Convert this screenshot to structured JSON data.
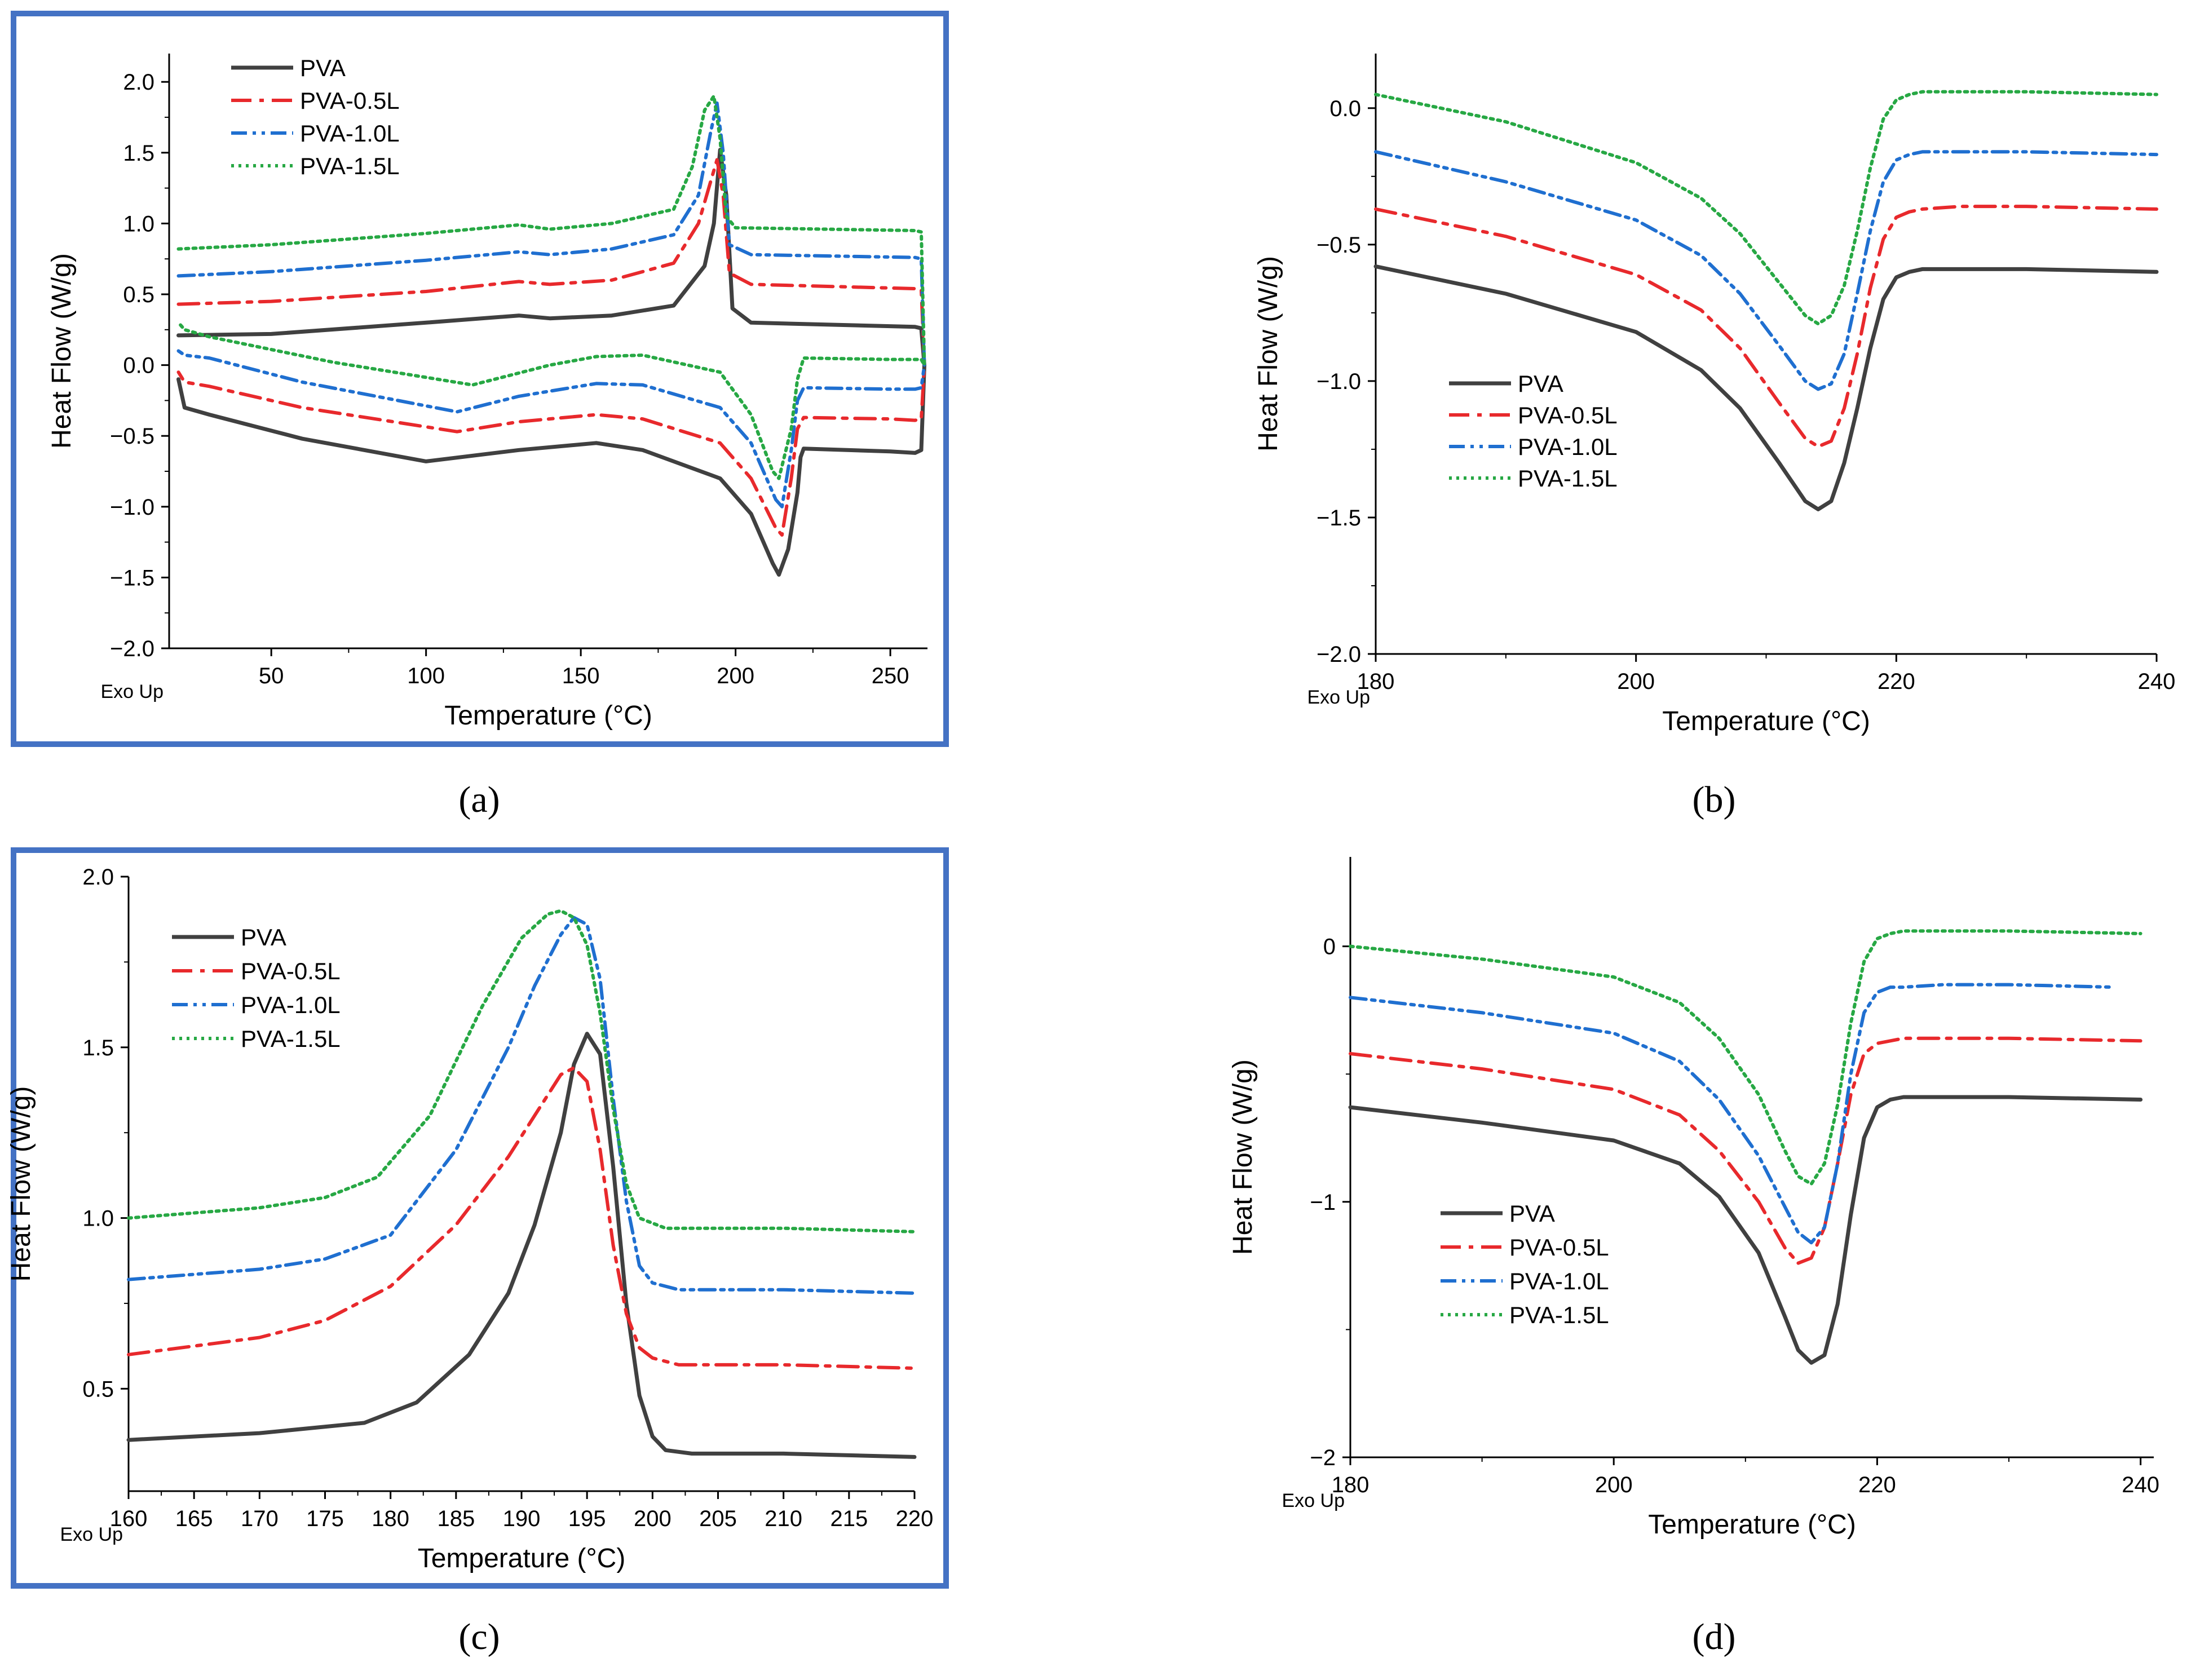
{
  "chart_data": [
    {
      "type": "line",
      "panel_label": "(a)",
      "xlabel": "Temperature (°C)",
      "ylabel": "Heat Flow (W/g)",
      "corner_note": "Exo Up",
      "xlim": [
        17,
        262
      ],
      "ylim": [
        -2.0,
        2.2
      ],
      "xticks": [
        50,
        100,
        150,
        200,
        250
      ],
      "xtick_labels": [
        "50",
        "100",
        "150",
        "200",
        "250"
      ],
      "yticks": [
        -2.0,
        -1.5,
        -1.0,
        -0.5,
        0.0,
        0.5,
        1.0,
        1.5,
        2.0
      ],
      "ytick_labels": [
        "−2.0",
        "−1.5",
        "−1.0",
        "−0.5",
        "0.0",
        "0.5",
        "1.0",
        "1.5",
        "2.0"
      ],
      "legend_position": "top-left",
      "series": [
        {
          "name": "PVA",
          "color": "#404040",
          "dash": "solid",
          "x": [
            20,
            50,
            100,
            130,
            140,
            160,
            180,
            190,
            193,
            195,
            197,
            199,
            205,
            258,
            260,
            261,
            260,
            258,
            250,
            222,
            221,
            220,
            217,
            214,
            212,
            205,
            195,
            170,
            155,
            130,
            100,
            60,
            30,
            22,
            20
          ],
          "y": [
            0.21,
            0.22,
            0.3,
            0.35,
            0.33,
            0.35,
            0.42,
            0.7,
            1.0,
            1.52,
            1.2,
            0.4,
            0.3,
            0.27,
            0.26,
            0.0,
            -0.6,
            -0.62,
            -0.61,
            -0.59,
            -0.65,
            -0.9,
            -1.3,
            -1.48,
            -1.4,
            -1.05,
            -0.8,
            -0.6,
            -0.55,
            -0.6,
            -0.68,
            -0.52,
            -0.35,
            -0.3,
            -0.1
          ]
        },
        {
          "name": "PVA-0.5L",
          "color": "#e8292c",
          "dash": "dashdot",
          "x": [
            20,
            50,
            100,
            130,
            140,
            160,
            180,
            188,
            192,
            194,
            196,
            198,
            205,
            258,
            260,
            261,
            260,
            258,
            250,
            222,
            220,
            218,
            215,
            213,
            205,
            195,
            170,
            155,
            130,
            110,
            60,
            30,
            22,
            20
          ],
          "y": [
            0.43,
            0.45,
            0.52,
            0.59,
            0.57,
            0.6,
            0.72,
            1.0,
            1.3,
            1.45,
            1.2,
            0.65,
            0.57,
            0.54,
            0.53,
            0.0,
            -0.38,
            -0.39,
            -0.38,
            -0.37,
            -0.45,
            -0.8,
            -1.2,
            -1.15,
            -0.8,
            -0.55,
            -0.38,
            -0.35,
            -0.4,
            -0.47,
            -0.3,
            -0.15,
            -0.12,
            -0.05
          ]
        },
        {
          "name": "PVA-1.0L",
          "color": "#1f6fd0",
          "dash": "dashdotdot",
          "x": [
            20,
            50,
            100,
            130,
            140,
            160,
            180,
            188,
            192,
            194,
            196,
            198,
            205,
            258,
            260,
            261,
            260,
            258,
            250,
            222,
            220,
            218,
            215,
            213,
            205,
            195,
            170,
            155,
            130,
            110,
            60,
            30,
            22,
            20
          ],
          "y": [
            0.63,
            0.66,
            0.74,
            0.8,
            0.78,
            0.82,
            0.92,
            1.2,
            1.65,
            1.85,
            1.5,
            0.85,
            0.78,
            0.76,
            0.75,
            0.0,
            -0.16,
            -0.17,
            -0.17,
            -0.16,
            -0.25,
            -0.6,
            -1.0,
            -0.95,
            -0.55,
            -0.3,
            -0.14,
            -0.13,
            -0.22,
            -0.33,
            -0.12,
            0.05,
            0.07,
            0.1
          ]
        },
        {
          "name": "PVA-1.5L",
          "color": "#27a844",
          "dash": "dotted",
          "x": [
            20,
            50,
            100,
            130,
            140,
            160,
            180,
            186,
            190,
            193,
            195,
            197,
            200,
            258,
            260,
            261,
            260,
            258,
            250,
            222,
            220,
            218,
            214,
            212,
            205,
            195,
            170,
            155,
            140,
            115,
            70,
            30,
            22,
            20
          ],
          "y": [
            0.82,
            0.85,
            0.93,
            0.99,
            0.96,
            1.0,
            1.1,
            1.4,
            1.8,
            1.9,
            1.6,
            1.05,
            0.97,
            0.95,
            0.94,
            0.0,
            0.04,
            0.04,
            0.04,
            0.05,
            -0.1,
            -0.45,
            -0.8,
            -0.75,
            -0.35,
            -0.05,
            0.07,
            0.06,
            0.0,
            -0.14,
            0.02,
            0.2,
            0.25,
            0.3
          ]
        }
      ]
    },
    {
      "type": "line",
      "panel_label": "(b)",
      "xlabel": "Temperature (°C)",
      "ylabel": "Heat Flow (W/g)",
      "corner_note": "Exo Up",
      "xlim": [
        180,
        240
      ],
      "ylim": [
        -2.0,
        0.2
      ],
      "xticks": [
        180,
        200,
        220,
        240
      ],
      "xtick_labels": [
        "180",
        "200",
        "220",
        "240"
      ],
      "yticks": [
        -2.0,
        -1.5,
        -1.0,
        -0.5,
        0.0
      ],
      "ytick_labels": [
        "−2.0",
        "−1.5",
        "−1.0",
        "−0.5",
        "0.0"
      ],
      "legend_position": "lower-left",
      "series": [
        {
          "name": "PVA",
          "color": "#404040",
          "dash": "solid",
          "x": [
            180,
            190,
            200,
            205,
            208,
            211,
            213,
            214,
            215,
            216,
            217,
            218,
            219,
            220,
            221,
            222,
            225,
            230,
            240
          ],
          "y": [
            -0.58,
            -0.68,
            -0.82,
            -0.96,
            -1.1,
            -1.3,
            -1.44,
            -1.47,
            -1.44,
            -1.3,
            -1.1,
            -0.88,
            -0.7,
            -0.62,
            -0.6,
            -0.59,
            -0.59,
            -0.59,
            -0.6
          ]
        },
        {
          "name": "PVA-0.5L",
          "color": "#e8292c",
          "dash": "dashdot",
          "x": [
            180,
            190,
            200,
            205,
            208,
            211,
            213,
            214,
            215,
            216,
            217,
            218,
            219,
            220,
            221,
            222,
            225,
            230,
            240
          ],
          "y": [
            -0.37,
            -0.47,
            -0.61,
            -0.74,
            -0.88,
            -1.08,
            -1.21,
            -1.24,
            -1.22,
            -1.1,
            -0.9,
            -0.66,
            -0.48,
            -0.4,
            -0.38,
            -0.37,
            -0.36,
            -0.36,
            -0.37
          ]
        },
        {
          "name": "PVA-1.0L",
          "color": "#1f6fd0",
          "dash": "dashdotdot",
          "x": [
            180,
            190,
            200,
            205,
            208,
            211,
            213,
            214,
            215,
            216,
            217,
            218,
            219,
            220,
            221,
            222,
            225,
            230,
            240
          ],
          "y": [
            -0.16,
            -0.27,
            -0.41,
            -0.54,
            -0.68,
            -0.87,
            -1.0,
            -1.03,
            -1.01,
            -0.9,
            -0.68,
            -0.45,
            -0.27,
            -0.19,
            -0.17,
            -0.16,
            -0.16,
            -0.16,
            -0.17
          ]
        },
        {
          "name": "PVA-1.5L",
          "color": "#27a844",
          "dash": "dotted",
          "x": [
            180,
            190,
            200,
            205,
            208,
            211,
            213,
            214,
            215,
            216,
            217,
            218,
            219,
            220,
            221,
            222,
            225,
            230,
            240
          ],
          "y": [
            0.05,
            -0.05,
            -0.2,
            -0.33,
            -0.46,
            -0.64,
            -0.76,
            -0.79,
            -0.76,
            -0.65,
            -0.45,
            -0.22,
            -0.04,
            0.03,
            0.05,
            0.06,
            0.06,
            0.06,
            0.05
          ]
        }
      ]
    },
    {
      "type": "line",
      "panel_label": "(c)",
      "xlabel": "Temperature (°C)",
      "ylabel": "Heat Flow (W/g)",
      "corner_note": "Exo Up",
      "xlim": [
        160,
        220
      ],
      "ylim": [
        0.2,
        2.0
      ],
      "xticks": [
        160,
        165,
        170,
        175,
        180,
        185,
        190,
        195,
        200,
        205,
        210,
        215,
        220
      ],
      "xtick_labels": [
        "160",
        "165",
        "170",
        "175",
        "180",
        "185",
        "190",
        "195",
        "200",
        "205",
        "210",
        "215",
        "220"
      ],
      "yticks": [
        0.5,
        1.0,
        1.5,
        2.0
      ],
      "ytick_labels": [
        "0.5",
        "1.0",
        "1.5",
        "2.0"
      ],
      "legend_position": "top-left",
      "series": [
        {
          "name": "PVA",
          "color": "#404040",
          "dash": "solid",
          "x": [
            160,
            170,
            178,
            182,
            186,
            189,
            191,
            193,
            194,
            195,
            196,
            197,
            198,
            199,
            200,
            201,
            203,
            210,
            220
          ],
          "y": [
            0.35,
            0.37,
            0.4,
            0.46,
            0.6,
            0.78,
            0.98,
            1.25,
            1.45,
            1.54,
            1.48,
            1.15,
            0.75,
            0.48,
            0.36,
            0.32,
            0.31,
            0.31,
            0.3
          ]
        },
        {
          "name": "PVA-0.5L",
          "color": "#e8292c",
          "dash": "dashdot",
          "x": [
            160,
            170,
            175,
            180,
            185,
            189,
            191,
            193,
            194,
            195,
            196,
            197,
            198,
            199,
            200,
            202,
            210,
            220
          ],
          "y": [
            0.6,
            0.65,
            0.7,
            0.8,
            0.98,
            1.18,
            1.3,
            1.42,
            1.44,
            1.4,
            1.2,
            0.92,
            0.72,
            0.62,
            0.59,
            0.57,
            0.57,
            0.56
          ]
        },
        {
          "name": "PVA-1.0L",
          "color": "#1f6fd0",
          "dash": "dashdotdot",
          "x": [
            160,
            170,
            175,
            180,
            185,
            189,
            191,
            193,
            194,
            195,
            196,
            197,
            198,
            199,
            200,
            202,
            210,
            220
          ],
          "y": [
            0.82,
            0.85,
            0.88,
            0.95,
            1.2,
            1.5,
            1.68,
            1.83,
            1.88,
            1.86,
            1.7,
            1.35,
            1.05,
            0.86,
            0.81,
            0.79,
            0.79,
            0.78
          ]
        },
        {
          "name": "PVA-1.5L",
          "color": "#27a844",
          "dash": "dotted",
          "x": [
            160,
            170,
            175,
            179,
            183,
            187,
            190,
            192,
            193,
            194,
            195,
            196,
            197,
            198,
            199,
            201,
            210,
            220
          ],
          "y": [
            1.0,
            1.03,
            1.06,
            1.12,
            1.3,
            1.62,
            1.82,
            1.89,
            1.9,
            1.88,
            1.8,
            1.6,
            1.32,
            1.1,
            1.0,
            0.97,
            0.97,
            0.96
          ]
        }
      ]
    },
    {
      "type": "line",
      "panel_label": "(d)",
      "xlabel": "Temperature (°C)",
      "ylabel": "Heat Flow (W/g)",
      "corner_note": "Exo Up",
      "xlim": [
        180,
        241
      ],
      "ylim": [
        -2.0,
        0.35
      ],
      "xticks": [
        180,
        200,
        220,
        240
      ],
      "xtick_labels": [
        "180",
        "200",
        "220",
        "240"
      ],
      "yticks": [
        -2,
        -1,
        0
      ],
      "ytick_labels": [
        "−2",
        "−1",
        "0"
      ],
      "legend_position": "lower-left",
      "series": [
        {
          "name": "PVA",
          "color": "#404040",
          "dash": "solid",
          "x": [
            180,
            190,
            200,
            205,
            208,
            211,
            213,
            214,
            215,
            216,
            217,
            218,
            219,
            220,
            221,
            222,
            225,
            230,
            240
          ],
          "y": [
            -0.63,
            -0.69,
            -0.76,
            -0.85,
            -0.98,
            -1.2,
            -1.45,
            -1.58,
            -1.63,
            -1.6,
            -1.4,
            -1.05,
            -0.75,
            -0.63,
            -0.6,
            -0.59,
            -0.59,
            -0.59,
            -0.6
          ]
        },
        {
          "name": "PVA-0.5L",
          "color": "#e8292c",
          "dash": "dashdot",
          "x": [
            180,
            190,
            200,
            205,
            208,
            211,
            213,
            214,
            215,
            216,
            217,
            218,
            219,
            220,
            221,
            222,
            225,
            230,
            240
          ],
          "y": [
            -0.42,
            -0.48,
            -0.56,
            -0.66,
            -0.8,
            -1.0,
            -1.18,
            -1.24,
            -1.22,
            -1.1,
            -0.85,
            -0.58,
            -0.42,
            -0.38,
            -0.37,
            -0.36,
            -0.36,
            -0.36,
            -0.37
          ]
        },
        {
          "name": "PVA-1.0L",
          "color": "#1f6fd0",
          "dash": "dashdotdot",
          "x": [
            180,
            190,
            200,
            205,
            208,
            211,
            213,
            214,
            215,
            216,
            217,
            218,
            219,
            220,
            221,
            222,
            225,
            230,
            238
          ],
          "y": [
            -0.2,
            -0.26,
            -0.34,
            -0.45,
            -0.6,
            -0.82,
            -1.02,
            -1.12,
            -1.16,
            -1.1,
            -0.85,
            -0.5,
            -0.26,
            -0.18,
            -0.16,
            -0.16,
            -0.15,
            -0.15,
            -0.16
          ]
        },
        {
          "name": "PVA-1.5L",
          "color": "#27a844",
          "dash": "dotted",
          "x": [
            180,
            190,
            200,
            205,
            208,
            211,
            213,
            214,
            215,
            216,
            217,
            218,
            219,
            220,
            221,
            222,
            225,
            230,
            240
          ],
          "y": [
            0.0,
            -0.05,
            -0.12,
            -0.22,
            -0.36,
            -0.58,
            -0.8,
            -0.9,
            -0.93,
            -0.85,
            -0.62,
            -0.3,
            -0.06,
            0.03,
            0.05,
            0.06,
            0.06,
            0.06,
            0.05
          ]
        }
      ]
    }
  ]
}
